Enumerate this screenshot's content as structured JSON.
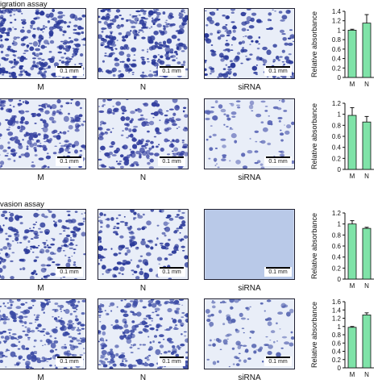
{
  "figure": {
    "section_a_title": "igration assay",
    "section_b_title": "vasion assay",
    "rows": [
      {
        "panel_labels": [
          "M",
          "N",
          "siRNA"
        ],
        "scale_bar": "0.1 mm",
        "density": [
          0.62,
          0.6,
          0.35
        ],
        "cell_color": [
          "#2b3a9a",
          "#2b3a9a",
          "#2b3a9a"
        ]
      },
      {
        "panel_labels": [
          "M",
          "N",
          "siRNA"
        ],
        "scale_bar": "0.1 mm",
        "density": [
          0.45,
          0.42,
          0.18
        ],
        "cell_color": [
          "#3440a0",
          "#3440a0",
          "#5a66b5"
        ]
      },
      {
        "panel_labels": [
          "M",
          "N",
          "siRNA"
        ],
        "scale_bar": "0.1 mm",
        "density": [
          0.4,
          0.35,
          0.0
        ],
        "cell_color": [
          "#2b3a9a",
          "#2b3a9a",
          "#9aa9d6"
        ]
      },
      {
        "panel_labels": [
          "M",
          "N",
          "siRNA"
        ],
        "scale_bar": "0.1 mm",
        "density": [
          0.55,
          0.5,
          0.2
        ],
        "cell_color": [
          "#3a4aa5",
          "#3a4aa5",
          "#5564b0"
        ]
      }
    ]
  },
  "chart_data": [
    {
      "type": "bar",
      "categories": [
        "M",
        "N"
      ],
      "values": [
        1.0,
        1.15
      ],
      "errors": [
        0.02,
        0.18
      ],
      "ylabel": "Relative absorbance",
      "ylim": [
        0,
        1.4
      ],
      "yticks": [
        0,
        0.2,
        0.4,
        0.6,
        0.8,
        1.0,
        1.2,
        1.4
      ],
      "bar_color": "#7fe3a8"
    },
    {
      "type": "bar",
      "categories": [
        "M",
        "N"
      ],
      "values": [
        0.98,
        0.86
      ],
      "errors": [
        0.14,
        0.1
      ],
      "ylabel": "Relative absorbance",
      "ylim": [
        0,
        1.2
      ],
      "yticks": [
        0,
        0.2,
        0.4,
        0.6,
        0.8,
        1.0,
        1.2
      ],
      "bar_color": "#7fe3a8"
    },
    {
      "type": "bar",
      "categories": [
        "M",
        "N"
      ],
      "values": [
        1.0,
        0.92
      ],
      "errors": [
        0.06,
        0.02
      ],
      "ylabel": "Relative absorbance",
      "ylim": [
        0,
        1.2
      ],
      "yticks": [
        0,
        0.2,
        0.4,
        0.6,
        0.8,
        1.0,
        1.2
      ],
      "bar_color": "#7fe3a8"
    },
    {
      "type": "bar",
      "categories": [
        "M",
        "N"
      ],
      "values": [
        0.98,
        1.28
      ],
      "errors": [
        0.02,
        0.05
      ],
      "ylabel": "Relative absorbance",
      "ylim": [
        0,
        1.6
      ],
      "yticks": [
        0,
        0.2,
        0.4,
        0.6,
        0.8,
        1.0,
        1.2,
        1.4,
        1.6
      ],
      "bar_color": "#7fe3a8"
    }
  ]
}
